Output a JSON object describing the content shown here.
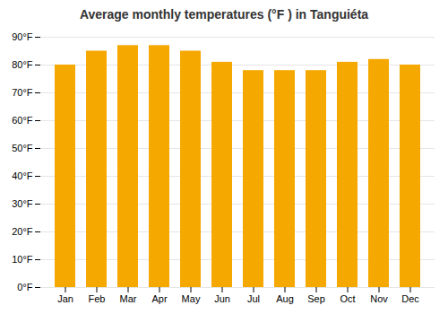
{
  "chart_data": {
    "type": "bar",
    "title": "Average monthly temperatures (°F ) in Tanguiéta",
    "categories": [
      "Jan",
      "Feb",
      "Mar",
      "Apr",
      "May",
      "Jun",
      "Jul",
      "Aug",
      "Sep",
      "Oct",
      "Nov",
      "Dec"
    ],
    "values": [
      80,
      85,
      87,
      87,
      85,
      81,
      78,
      78,
      78,
      81,
      82,
      80
    ],
    "color": "#F5A800",
    "ylim": [
      0,
      90
    ],
    "yticks": [
      {
        "value": 0,
        "label": "0°F"
      },
      {
        "value": 10,
        "label": "10°F"
      },
      {
        "value": 20,
        "label": "20°F"
      },
      {
        "value": 30,
        "label": "30°F"
      },
      {
        "value": 40,
        "label": "40°F"
      },
      {
        "value": 50,
        "label": "50°F"
      },
      {
        "value": 60,
        "label": "60°F"
      },
      {
        "value": 70,
        "label": "70°F"
      },
      {
        "value": 80,
        "label": "80°F"
      },
      {
        "value": 90,
        "label": "90°F"
      }
    ],
    "grid": true
  }
}
